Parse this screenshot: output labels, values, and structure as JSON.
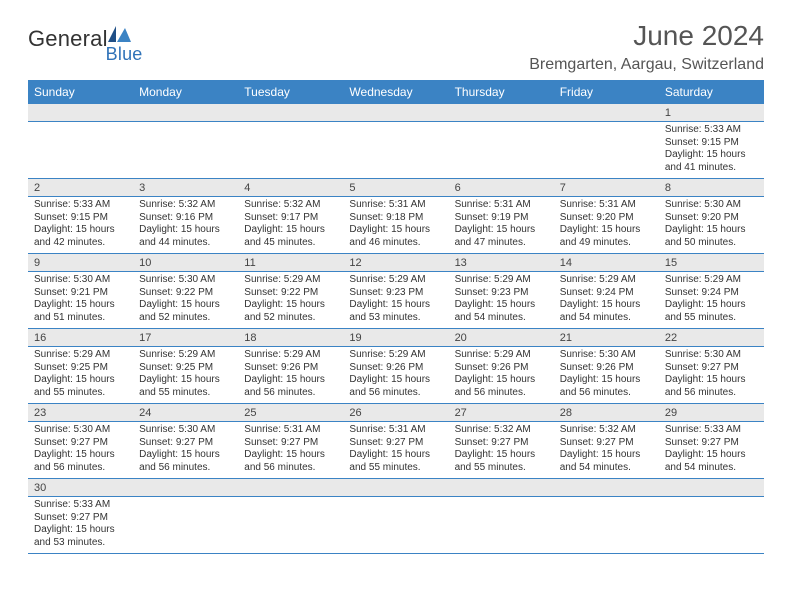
{
  "logo": {
    "text1": "General",
    "text2": "Blue"
  },
  "title": "June 2024",
  "location": "Bremgarten, Aargau, Switzerland",
  "colors": {
    "header_bg": "#3b83c4",
    "header_fg": "#ffffff",
    "daynum_bg": "#e9e9e9",
    "rule": "#3b83c4",
    "text": "#333333",
    "title_fg": "#555555"
  },
  "weekdays": [
    "Sunday",
    "Monday",
    "Tuesday",
    "Wednesday",
    "Thursday",
    "Friday",
    "Saturday"
  ],
  "weeks": [
    [
      null,
      null,
      null,
      null,
      null,
      null,
      {
        "n": "1",
        "sr": "5:33 AM",
        "ss": "9:15 PM",
        "dh": "15",
        "dm": "41"
      }
    ],
    [
      {
        "n": "2",
        "sr": "5:33 AM",
        "ss": "9:15 PM",
        "dh": "15",
        "dm": "42"
      },
      {
        "n": "3",
        "sr": "5:32 AM",
        "ss": "9:16 PM",
        "dh": "15",
        "dm": "44"
      },
      {
        "n": "4",
        "sr": "5:32 AM",
        "ss": "9:17 PM",
        "dh": "15",
        "dm": "45"
      },
      {
        "n": "5",
        "sr": "5:31 AM",
        "ss": "9:18 PM",
        "dh": "15",
        "dm": "46"
      },
      {
        "n": "6",
        "sr": "5:31 AM",
        "ss": "9:19 PM",
        "dh": "15",
        "dm": "47"
      },
      {
        "n": "7",
        "sr": "5:31 AM",
        "ss": "9:20 PM",
        "dh": "15",
        "dm": "49"
      },
      {
        "n": "8",
        "sr": "5:30 AM",
        "ss": "9:20 PM",
        "dh": "15",
        "dm": "50"
      }
    ],
    [
      {
        "n": "9",
        "sr": "5:30 AM",
        "ss": "9:21 PM",
        "dh": "15",
        "dm": "51"
      },
      {
        "n": "10",
        "sr": "5:30 AM",
        "ss": "9:22 PM",
        "dh": "15",
        "dm": "52"
      },
      {
        "n": "11",
        "sr": "5:29 AM",
        "ss": "9:22 PM",
        "dh": "15",
        "dm": "52"
      },
      {
        "n": "12",
        "sr": "5:29 AM",
        "ss": "9:23 PM",
        "dh": "15",
        "dm": "53"
      },
      {
        "n": "13",
        "sr": "5:29 AM",
        "ss": "9:23 PM",
        "dh": "15",
        "dm": "54"
      },
      {
        "n": "14",
        "sr": "5:29 AM",
        "ss": "9:24 PM",
        "dh": "15",
        "dm": "54"
      },
      {
        "n": "15",
        "sr": "5:29 AM",
        "ss": "9:24 PM",
        "dh": "15",
        "dm": "55"
      }
    ],
    [
      {
        "n": "16",
        "sr": "5:29 AM",
        "ss": "9:25 PM",
        "dh": "15",
        "dm": "55"
      },
      {
        "n": "17",
        "sr": "5:29 AM",
        "ss": "9:25 PM",
        "dh": "15",
        "dm": "55"
      },
      {
        "n": "18",
        "sr": "5:29 AM",
        "ss": "9:26 PM",
        "dh": "15",
        "dm": "56"
      },
      {
        "n": "19",
        "sr": "5:29 AM",
        "ss": "9:26 PM",
        "dh": "15",
        "dm": "56"
      },
      {
        "n": "20",
        "sr": "5:29 AM",
        "ss": "9:26 PM",
        "dh": "15",
        "dm": "56"
      },
      {
        "n": "21",
        "sr": "5:30 AM",
        "ss": "9:26 PM",
        "dh": "15",
        "dm": "56"
      },
      {
        "n": "22",
        "sr": "5:30 AM",
        "ss": "9:27 PM",
        "dh": "15",
        "dm": "56"
      }
    ],
    [
      {
        "n": "23",
        "sr": "5:30 AM",
        "ss": "9:27 PM",
        "dh": "15",
        "dm": "56"
      },
      {
        "n": "24",
        "sr": "5:30 AM",
        "ss": "9:27 PM",
        "dh": "15",
        "dm": "56"
      },
      {
        "n": "25",
        "sr": "5:31 AM",
        "ss": "9:27 PM",
        "dh": "15",
        "dm": "56"
      },
      {
        "n": "26",
        "sr": "5:31 AM",
        "ss": "9:27 PM",
        "dh": "15",
        "dm": "55"
      },
      {
        "n": "27",
        "sr": "5:32 AM",
        "ss": "9:27 PM",
        "dh": "15",
        "dm": "55"
      },
      {
        "n": "28",
        "sr": "5:32 AM",
        "ss": "9:27 PM",
        "dh": "15",
        "dm": "54"
      },
      {
        "n": "29",
        "sr": "5:33 AM",
        "ss": "9:27 PM",
        "dh": "15",
        "dm": "54"
      }
    ],
    [
      {
        "n": "30",
        "sr": "5:33 AM",
        "ss": "9:27 PM",
        "dh": "15",
        "dm": "53"
      },
      null,
      null,
      null,
      null,
      null,
      null
    ]
  ],
  "labels": {
    "sunrise": "Sunrise:",
    "sunset": "Sunset:",
    "daylight_a": "Daylight:",
    "hours": "hours",
    "and": "and",
    "minutes": "minutes."
  }
}
